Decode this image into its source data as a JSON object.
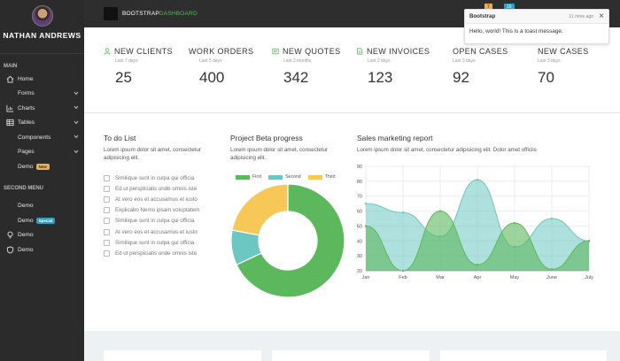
{
  "sidebar": {
    "user_name": "NATHAN ANDREWS",
    "main_section": "MAIN",
    "second_section": "SECOND MENU",
    "items": [
      {
        "label": "Home",
        "icon": "home-icon"
      },
      {
        "label": "Forms"
      },
      {
        "label": "Charts",
        "icon": "chart-icon"
      },
      {
        "label": "Tables",
        "icon": "table-icon"
      },
      {
        "label": "Components"
      },
      {
        "label": "Pages"
      },
      {
        "label": "Demo",
        "badge": "New"
      }
    ],
    "second_items": [
      {
        "label": "Demo"
      },
      {
        "label": "Demo",
        "badge": "Special"
      },
      {
        "label": "Demo",
        "icon": "bulb-icon"
      },
      {
        "label": "Demo",
        "icon": "shield-icon"
      }
    ]
  },
  "topbar": {
    "brand_prefix": "BOOTSTRAP",
    "brand_suffix": "DASHBOARD",
    "badge1": "7",
    "badge2": "16"
  },
  "toast": {
    "title": "Bootstrap",
    "time": "11 mins ago",
    "body": "Hello, world! This is a toast message."
  },
  "stats": [
    {
      "label": "NEW CLIENTS",
      "sub": "Last 7 days",
      "value": "25",
      "icon": "user-icon",
      "color": "#5cb85c"
    },
    {
      "label": "WORK ORDERS",
      "sub": "Last 5 days",
      "value": "400",
      "icon": "",
      "color": ""
    },
    {
      "label": "NEW QUOTES",
      "sub": "Last 2 months",
      "value": "342",
      "icon": "quote-icon",
      "color": "#5cb85c"
    },
    {
      "label": "NEW INVOICES",
      "sub": "Last 2 days",
      "value": "123",
      "icon": "invoice-icon",
      "color": "#5cb85c"
    },
    {
      "label": "OPEN CASES",
      "sub": "Last 3 days",
      "value": "92",
      "icon": "",
      "color": ""
    },
    {
      "label": "NEW CASES",
      "sub": "Last 3 days",
      "value": "70",
      "icon": "",
      "color": ""
    }
  ],
  "todo": {
    "title": "To do List",
    "desc1": "Lorem ipsum dolor sit amet, consectetur",
    "desc2": "adipisicing elit.",
    "items": [
      "Similique sunt in culpa qui officia",
      "Ed ut perspiciatis unde omnis iste",
      "At vero eos et accusamus et iusto",
      "Explicabo Nemo ipsam voluptatem",
      "Similique sunt in culpa qui officia",
      "At vero eos et accusamus et iusto",
      "Similique sunt in culpa qui officia",
      "Ed ut perspiciatis unde omnis iste"
    ]
  },
  "beta": {
    "title": "Project Beta progress",
    "desc1": "Lorem ipsum dolor sit amet, consectetur",
    "desc2": "adipisicing elit."
  },
  "sales": {
    "title": "Sales marketing report",
    "desc": "Lorem ipsum dolor sit amet, consectetur adipisicing elit. Dolor amet officiis"
  },
  "colors": {
    "green": "#5cb85c",
    "teal": "#6cc6c2",
    "yellow": "#f7c858",
    "sidebar": "#2b2b2b",
    "topbar": "#2e2e2e"
  },
  "chart_data": [
    {
      "type": "pie",
      "variant": "doughnut",
      "categories": [
        "First",
        "Second",
        "Third"
      ],
      "values": [
        68,
        10,
        22
      ],
      "colors": [
        "#5cb85c",
        "#6cc6c2",
        "#f7c858"
      ],
      "legend": "top"
    },
    {
      "type": "area",
      "x": [
        "Jan",
        "Feb",
        "Mar",
        "Apr",
        "May",
        "June",
        "July"
      ],
      "ylim": [
        20,
        90
      ],
      "yticks": [
        20,
        30,
        40,
        50,
        60,
        70,
        80,
        90
      ],
      "grid": true,
      "series": [
        {
          "values": [
            65,
            59,
            43,
            81,
            36,
            55,
            40
          ],
          "color": "#6cc6c2"
        },
        {
          "values": [
            50,
            20,
            60,
            24,
            52,
            21,
            40
          ],
          "color": "#5cb85c"
        }
      ]
    }
  ]
}
